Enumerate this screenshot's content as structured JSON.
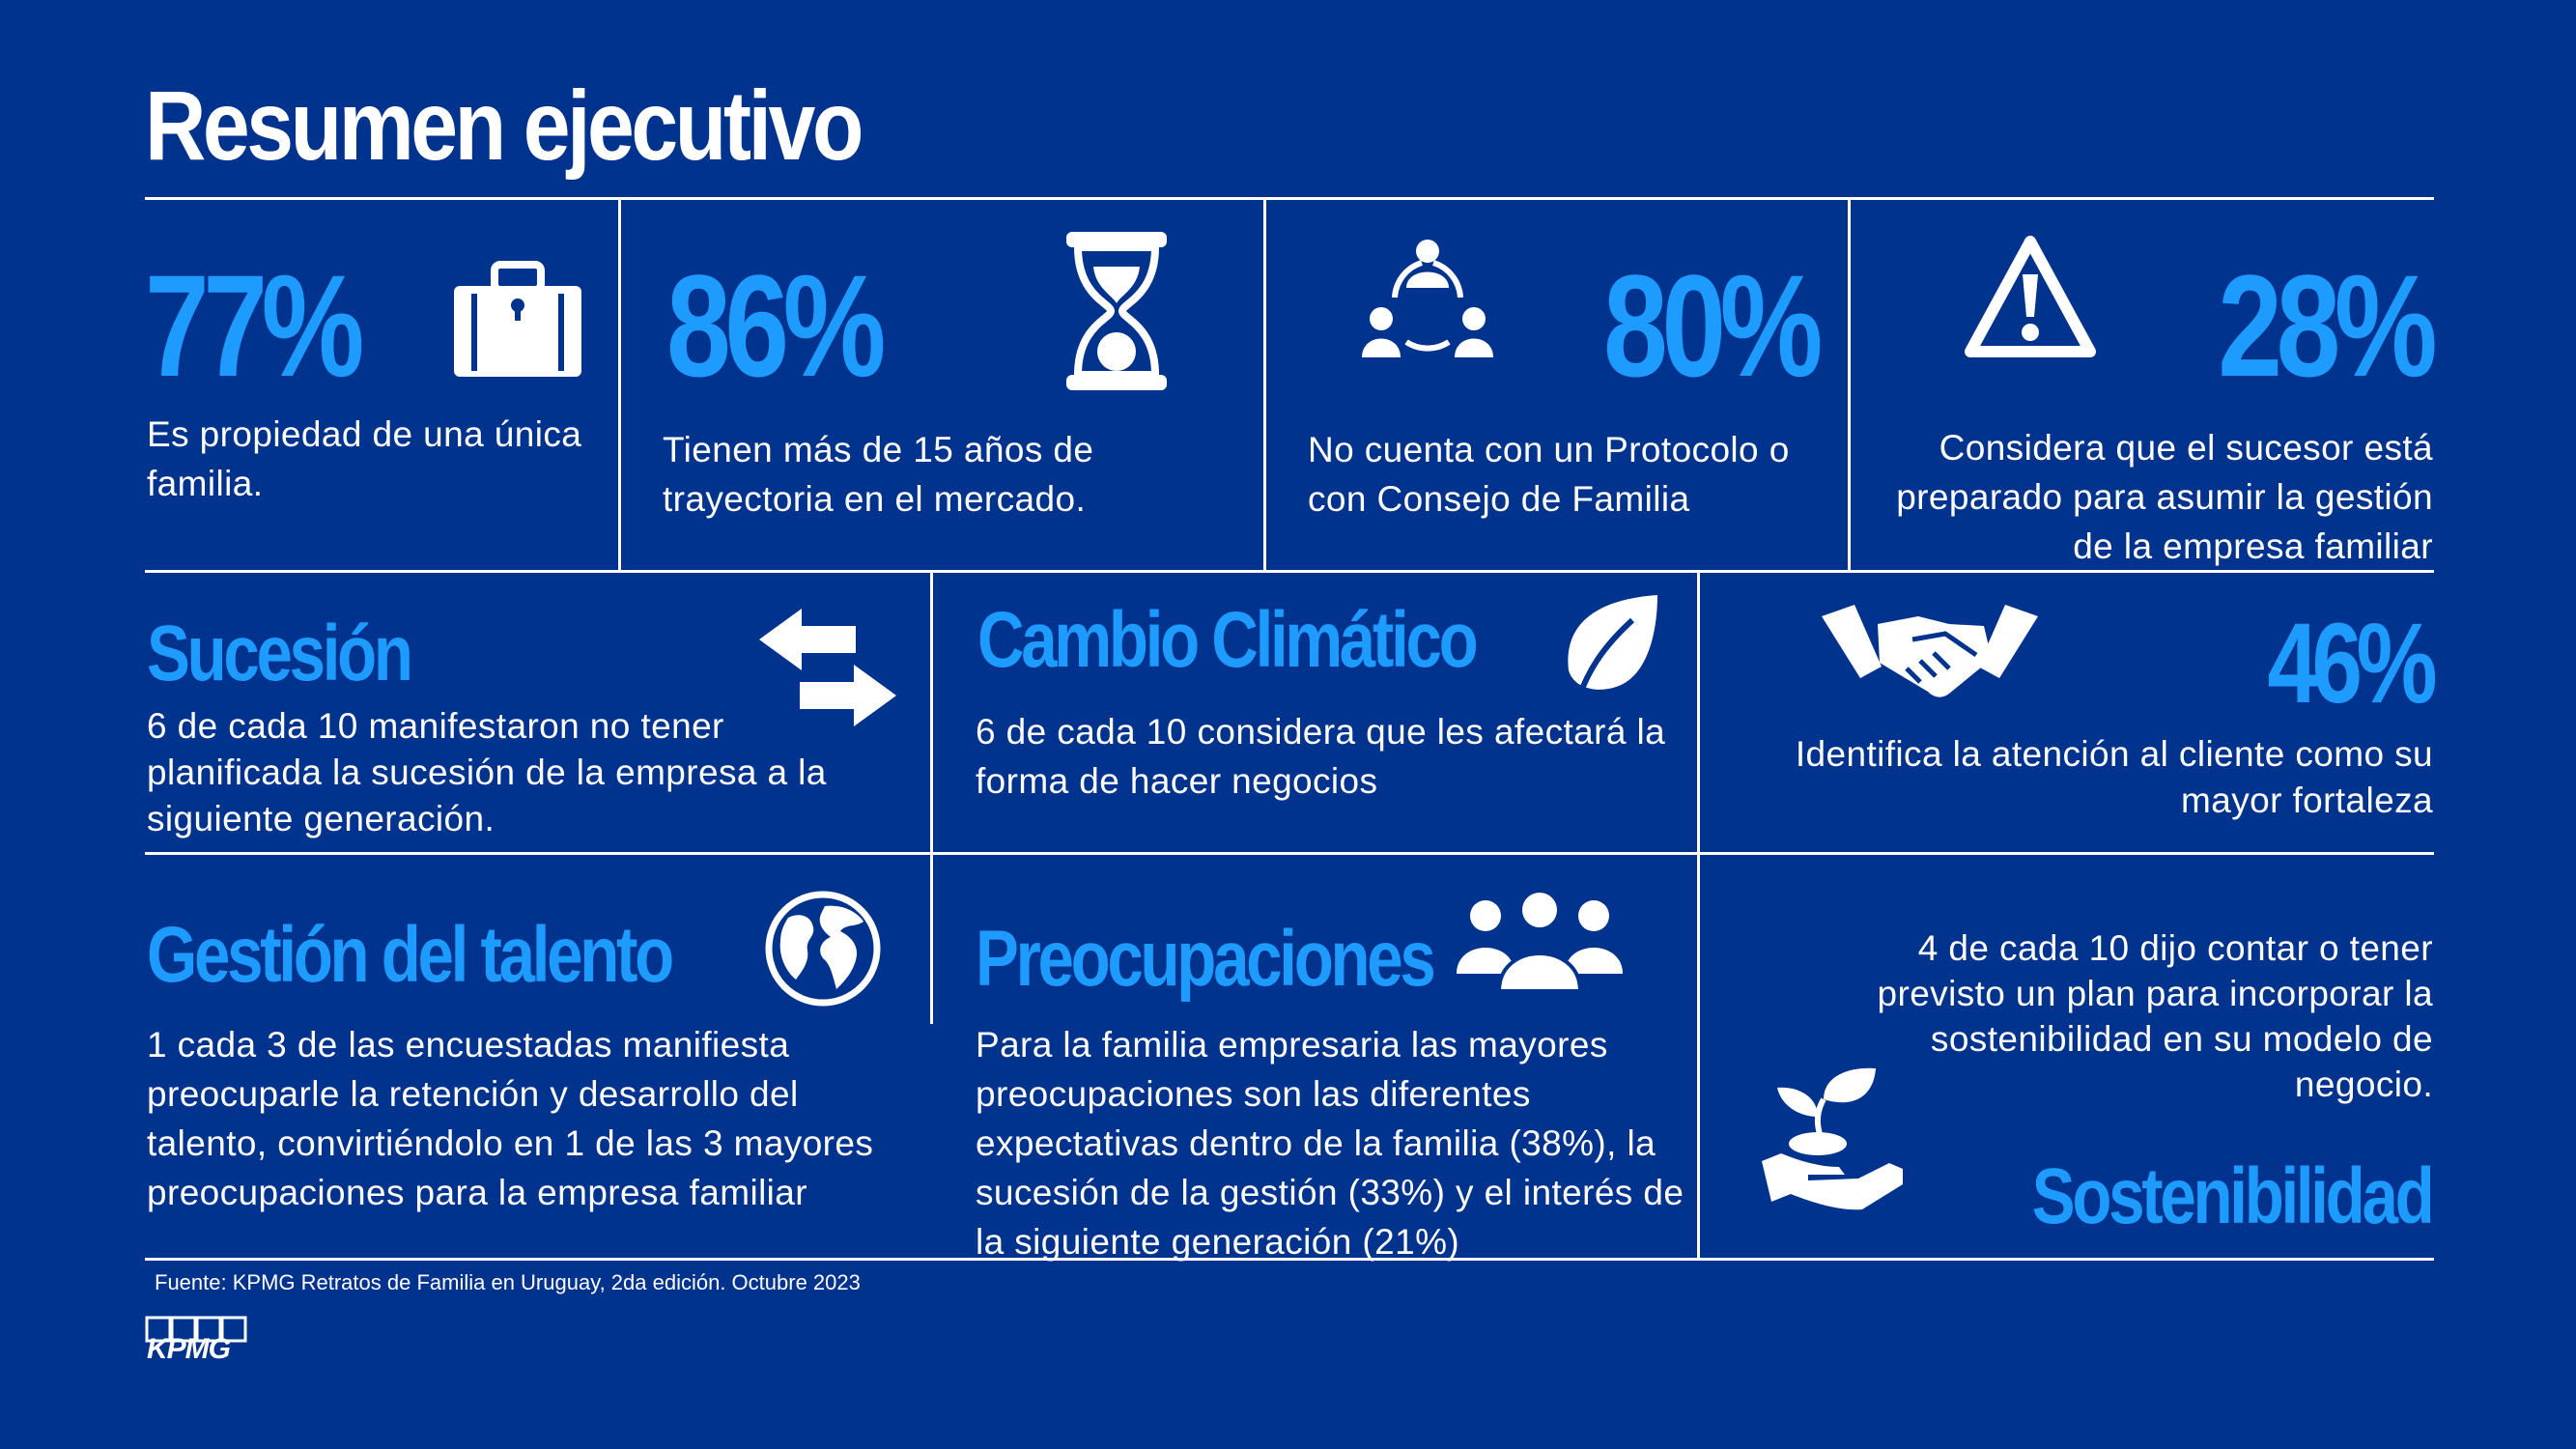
{
  "title": "Resumen ejecutivo",
  "row1": [
    {
      "stat": "77%",
      "text": "Es propiedad de una única familia.",
      "icon": "briefcase-icon"
    },
    {
      "stat": "86%",
      "text": "Tienen más de 15 años de trayectoria en el mercado.",
      "icon": "hourglass-icon"
    },
    {
      "stat": "80%",
      "text": "No cuenta con un Protocolo o con Consejo de Familia",
      "icon": "network-people-icon"
    },
    {
      "stat": "28%",
      "text": "Considera que el sucesor está preparado para asumir la gestión de la empresa familiar",
      "icon": "warning-icon"
    }
  ],
  "row2": [
    {
      "heading": "Sucesión",
      "text": "6 de cada 10 manifestaron no tener planificada la sucesión de la empresa a la siguiente generación.",
      "icon": "swap-arrows-icon"
    },
    {
      "heading": "Cambio Climático",
      "text": "6 de cada 10 considera que les afectará la forma de hacer negocios",
      "icon": "leaf-icon"
    },
    {
      "stat": "46%",
      "text": "Identifica la atención al cliente como su mayor fortaleza",
      "icon": "handshake-icon"
    }
  ],
  "row3": [
    {
      "heading": "Gestión del talento",
      "text": "1 cada 3 de las encuestadas manifiesta preocuparle la retención y desarrollo del talento, convirtiéndolo en 1 de las 3 mayores preocupaciones para la empresa familiar",
      "icon": "globe-icon"
    },
    {
      "heading": "Preocupaciones",
      "text": "Para la familia empresaria las mayores preocupaciones son las diferentes expectativas dentro de la familia (38%), la sucesión de la gestión (33%) y el interés de la siguiente generación (21%)",
      "icon": "group-people-icon"
    },
    {
      "heading": "Sostenibilidad",
      "text": "4 de cada 10 dijo contar o tener previsto un plan para incorporar la sostenibilidad en su modelo de negocio.",
      "icon": "plant-in-hand-icon"
    }
  ],
  "source": "Fuente: KPMG Retratos de Familia en Uruguay, 2da edición. Octubre 2023",
  "logo_text": "KPMG",
  "colors": {
    "background": "#00338D",
    "accent": "#1E9BFF",
    "text": "#FFFFFF"
  }
}
